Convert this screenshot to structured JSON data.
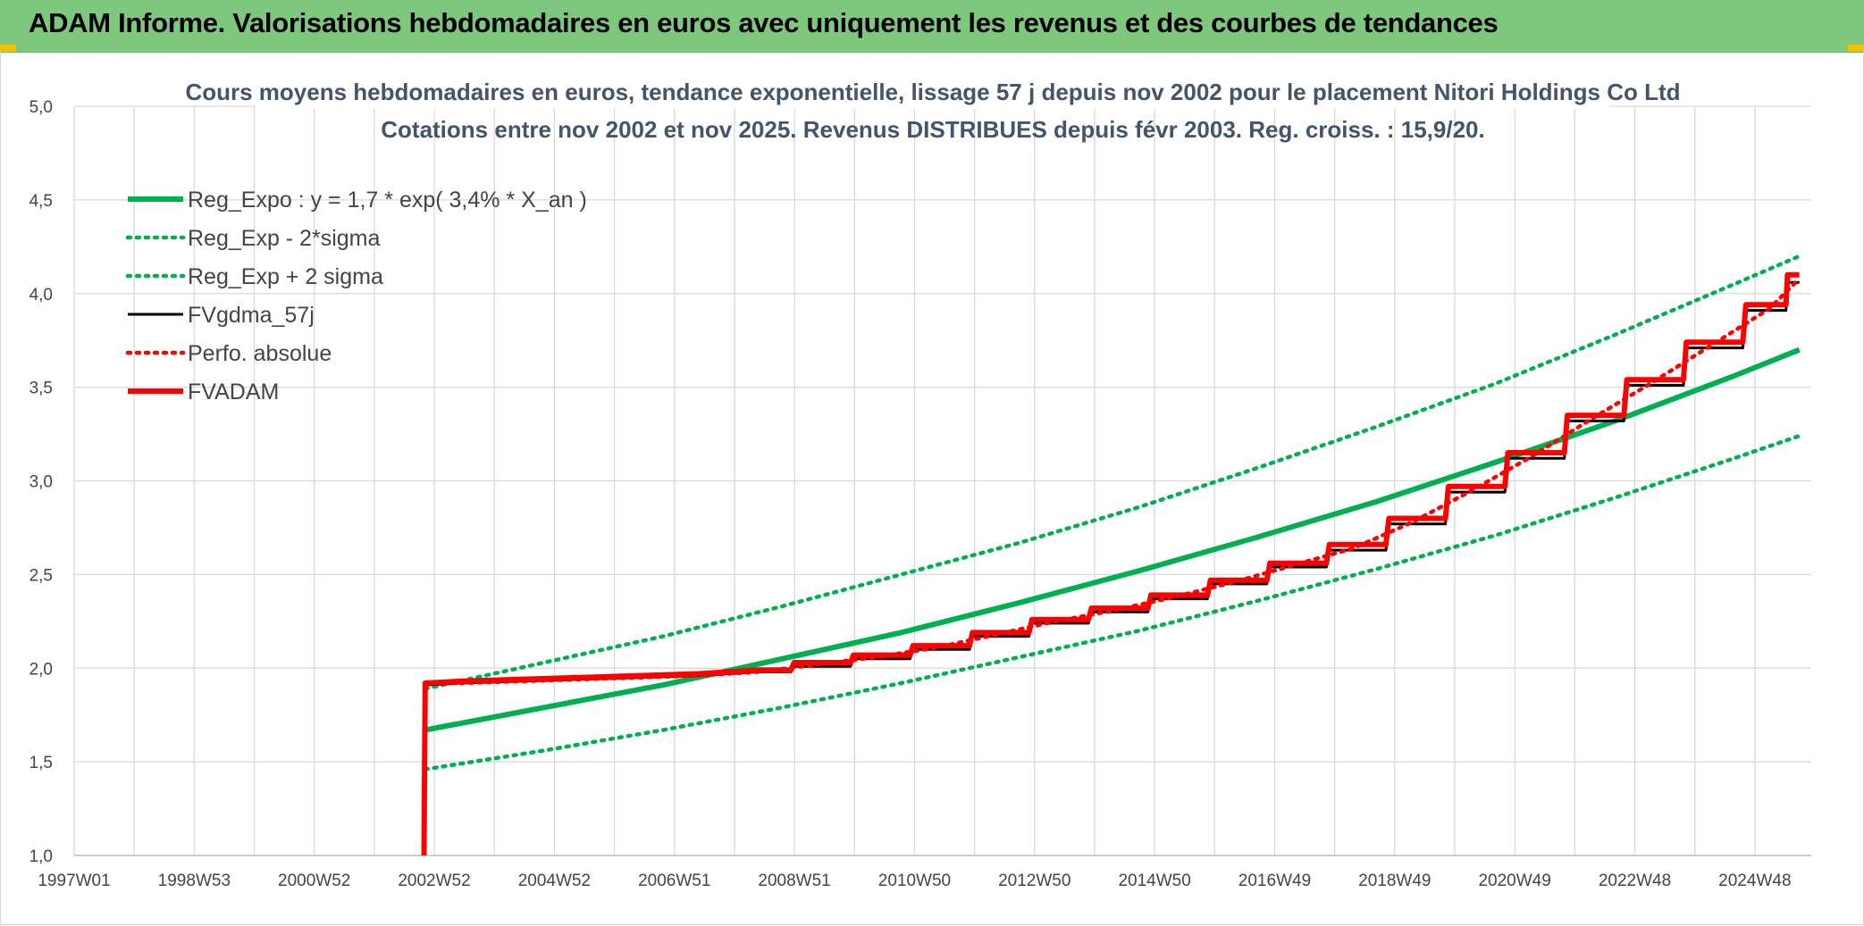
{
  "header": {
    "title": "ADAM Informe. Valorisations hebdomadaires en euros avec uniquement les revenus et des courbes de tendances"
  },
  "chart_data": {
    "type": "line",
    "title_line1": "Cours moyens hebdomadaires en euros, tendance exponentielle, lissage 57 j depuis nov 2002 pour le placement Nitori Holdings Co Ltd",
    "title_line2": "Cotations entre nov 2002 et nov 2025. Revenus DISTRIBUES depuis févr 2003. Reg. croiss. : 15,9/20.",
    "xlabel": "",
    "ylabel": "",
    "x_tick_labels": [
      "1997W01",
      "1998W53",
      "2000W52",
      "2002W52",
      "2004W52",
      "2006W51",
      "2008W51",
      "2010W50",
      "2012W50",
      "2014W50",
      "2016W49",
      "2018W49",
      "2020W49",
      "2022W48",
      "2024W48"
    ],
    "x_range": [
      1997.0,
      2026.2
    ],
    "ylim": [
      1.0,
      5.0
    ],
    "y_ticks": [
      1.0,
      1.5,
      2.0,
      2.5,
      3.0,
      3.5,
      4.0,
      4.5,
      5.0
    ],
    "y_tick_labels": [
      "1,0",
      "1,5",
      "2,0",
      "2,5",
      "3,0",
      "3,5",
      "4,0",
      "4,5",
      "5,0"
    ],
    "grid": true,
    "legend_position": "top-left",
    "colors": {
      "green": "#00b050",
      "black": "#000000",
      "red": "#ff0000",
      "banner": "#7dc87d",
      "title": "#44546a"
    },
    "series": [
      {
        "name": "Reg_Expo : y = 1,7 * exp( 3,4% *  X_an )",
        "style": "solid",
        "color": "#00b050",
        "x": [
          2002.9,
          2004.9,
          2006.9,
          2008.9,
          2010.9,
          2012.9,
          2014.9,
          2016.9,
          2018.9,
          2020.9,
          2022.9,
          2024.9,
          2026.0
        ],
        "y": [
          1.67,
          1.79,
          1.91,
          2.05,
          2.19,
          2.35,
          2.52,
          2.7,
          2.89,
          3.1,
          3.32,
          3.56,
          3.7
        ]
      },
      {
        "name": "Reg_Exp - 2*sigma",
        "style": "dotted",
        "color": "#00b050",
        "x": [
          2002.9,
          2004.9,
          2006.9,
          2008.9,
          2010.9,
          2012.9,
          2014.9,
          2016.9,
          2018.9,
          2020.9,
          2022.9,
          2024.9,
          2026.0
        ],
        "y": [
          1.46,
          1.56,
          1.67,
          1.79,
          1.92,
          2.06,
          2.2,
          2.36,
          2.53,
          2.71,
          2.91,
          3.12,
          3.24
        ]
      },
      {
        "name": "Reg_Exp + 2 sigma",
        "style": "dotted",
        "color": "#00b050",
        "x": [
          2002.9,
          2004.9,
          2006.9,
          2008.9,
          2010.9,
          2012.9,
          2014.9,
          2016.9,
          2018.9,
          2020.9,
          2022.9,
          2024.9,
          2026.0
        ],
        "y": [
          1.89,
          2.03,
          2.17,
          2.33,
          2.5,
          2.67,
          2.86,
          3.07,
          3.29,
          3.52,
          3.78,
          4.05,
          4.2
        ]
      },
      {
        "name": "FVgdma_57j",
        "style": "solid",
        "color": "#000000",
        "x": [
          2002.9,
          2003.5,
          2004.5,
          2005.5,
          2006.5,
          2007.5,
          2008.5,
          2009.5,
          2010.5,
          2011.5,
          2012.5,
          2013.5,
          2014.5,
          2015.5,
          2016.5,
          2017.5,
          2018.5,
          2019.5,
          2020.5,
          2021.5,
          2022.5,
          2023.5,
          2024.5,
          2025.5,
          2026.0
        ],
        "y": [
          1.91,
          1.92,
          1.93,
          1.94,
          1.95,
          1.96,
          1.98,
          2.01,
          2.05,
          2.1,
          2.17,
          2.24,
          2.3,
          2.37,
          2.45,
          2.54,
          2.63,
          2.77,
          2.94,
          3.12,
          3.32,
          3.51,
          3.71,
          3.91,
          4.06
        ]
      },
      {
        "name": "Perfo. absolue",
        "style": "dotted",
        "color": "#ff0000",
        "x": [
          2002.9,
          2003.5,
          2004.5,
          2005.5,
          2006.5,
          2007.5,
          2008.5,
          2009.5,
          2010.5,
          2011.5,
          2012.5,
          2013.5,
          2014.5,
          2015.5,
          2016.5,
          2017.5,
          2018.5,
          2019.5,
          2020.5,
          2021.5,
          2022.5,
          2023.5,
          2024.5,
          2025.5,
          2026.0
        ],
        "y": [
          1.92,
          1.92,
          1.93,
          1.94,
          1.95,
          1.96,
          1.98,
          2.02,
          2.06,
          2.11,
          2.18,
          2.25,
          2.31,
          2.38,
          2.46,
          2.55,
          2.64,
          2.78,
          2.95,
          3.13,
          3.33,
          3.52,
          3.72,
          3.92,
          4.08
        ]
      },
      {
        "name": "FVADAM",
        "style": "solid",
        "color": "#ff0000",
        "x": [
          2002.88,
          2002.9,
          2003.5,
          2004.5,
          2005.5,
          2006.5,
          2007.5,
          2008.5,
          2009.5,
          2010.5,
          2011.5,
          2012.5,
          2013.5,
          2014.5,
          2015.5,
          2016.5,
          2017.5,
          2018.5,
          2019.5,
          2020.5,
          2021.5,
          2022.5,
          2023.5,
          2024.5,
          2025.5,
          2026.0
        ],
        "y": [
          1.0,
          1.92,
          1.93,
          1.94,
          1.95,
          1.96,
          1.97,
          1.99,
          2.03,
          2.07,
          2.12,
          2.19,
          2.26,
          2.32,
          2.39,
          2.47,
          2.56,
          2.66,
          2.8,
          2.97,
          3.15,
          3.35,
          3.54,
          3.74,
          3.94,
          4.1
        ]
      }
    ]
  }
}
